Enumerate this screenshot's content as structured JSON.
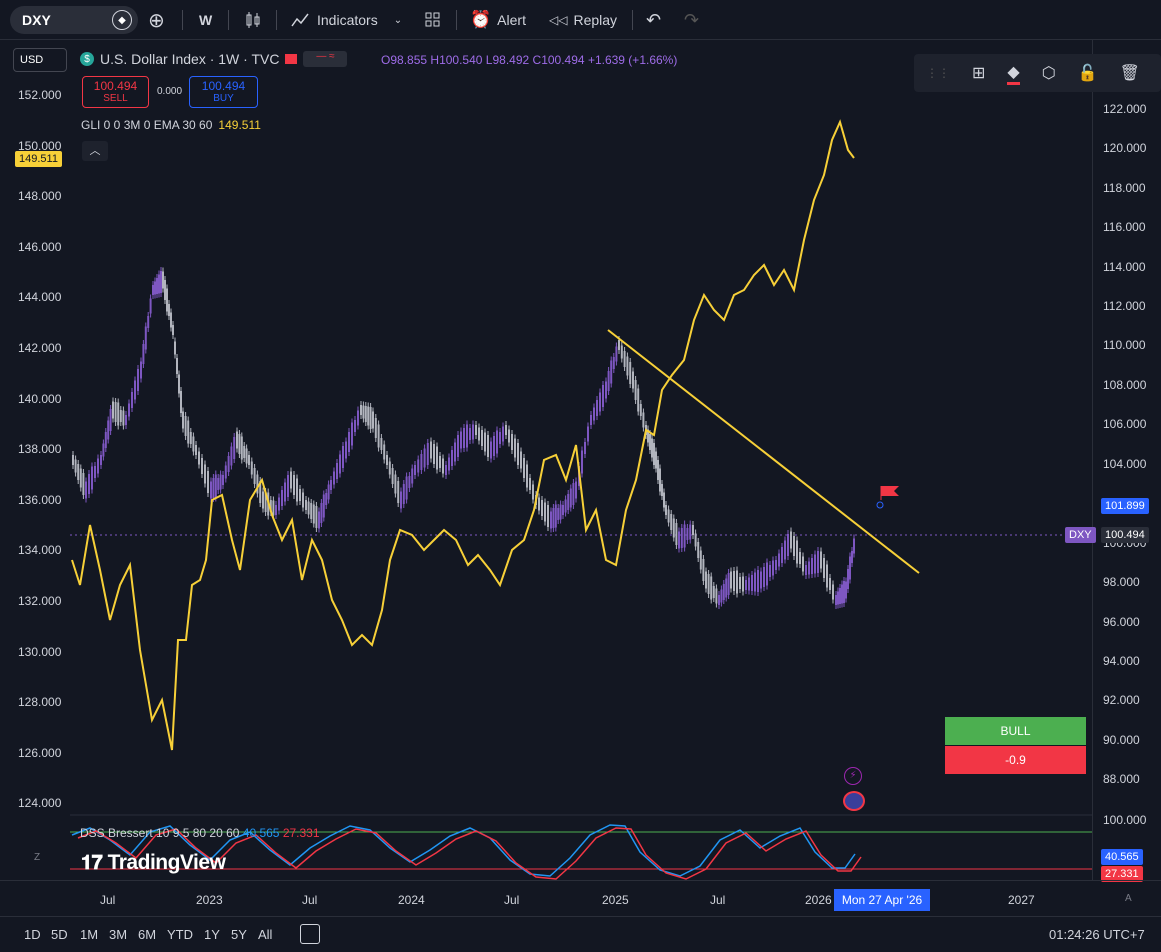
{
  "toolbar": {
    "symbol": "DXY",
    "interval": "W",
    "indicators": "Indicators",
    "alert": "Alert",
    "replay": "Replay"
  },
  "legend": {
    "title": "U.S. Dollar Index · 1W · TVC",
    "open_label": "O",
    "open": "98.855",
    "high_label": "H",
    "high": "100.540",
    "low_label": "L",
    "low": "98.492",
    "close_label": "C",
    "close": "100.494",
    "change": "+1.639 (+1.66%)"
  },
  "trade": {
    "sell_price": "100.494",
    "sell_label": "SELL",
    "spread": "0.000",
    "buy_price": "100.494",
    "buy_label": "BUY"
  },
  "gli": {
    "label": "GLI 0 0 3M 0 EMA 30 60",
    "value": "149.511"
  },
  "currency": "USD",
  "left_axis": [
    "152.000",
    "150.000",
    "148.000",
    "146.000",
    "144.000",
    "142.000",
    "140.000",
    "138.000",
    "136.000",
    "134.000",
    "132.000",
    "130.000",
    "128.000",
    "126.000",
    "124.000"
  ],
  "left_marker": "149.511",
  "right_axis": [
    "122.000",
    "120.000",
    "118.000",
    "116.000",
    "114.000",
    "112.000",
    "110.000",
    "108.000",
    "106.000",
    "104.000",
    "100.000",
    "98.000",
    "96.000",
    "94.000",
    "92.000",
    "90.000",
    "88.000"
  ],
  "right_markers": {
    "alert": "101.899",
    "dxy_label": "DXY",
    "dxy": "100.494"
  },
  "signal": {
    "bull": "BULL",
    "value": "-0.9"
  },
  "dss": {
    "label": "DSS Bressert 10 9 5 80 20 60",
    "blue": "40.565",
    "red": "27.331",
    "axis_top": "100.000"
  },
  "time_axis": [
    "Jul",
    "2023",
    "Jul",
    "2024",
    "Jul",
    "2025",
    "Jul",
    "2026",
    "2027"
  ],
  "cursor_date": "Mon 27 Apr '26",
  "ranges": [
    "1D",
    "5D",
    "1M",
    "3M",
    "6M",
    "YTD",
    "1Y",
    "5Y",
    "All"
  ],
  "clock": "01:24:26 UTC+7",
  "brand": "TradingView",
  "scale_mode": "A",
  "zoom_label": "Z",
  "colors": {
    "bg": "#131722",
    "candle": "#7e57c2",
    "gli_line": "#f7d038",
    "trend": "#f7d038",
    "bull": "#4caf50",
    "bear": "#f23645"
  }
}
